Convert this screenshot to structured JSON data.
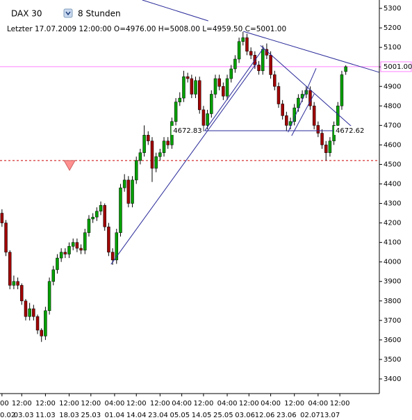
{
  "chart_data": {
    "type": "candlestick",
    "title": "DAX 30",
    "period": "8 Stunden",
    "subtitle": "Letzter 17.07.2009 12:00:00 O=4976.00 H=5008.00 L=4959.50 C=5001.00",
    "up_color": "#00a000",
    "down_color": "#a00000",
    "xlim": [
      -0.5,
      95.5
    ],
    "ylim": [
      3325,
      5343
    ],
    "yticks": [
      3400,
      3500,
      3600,
      3700,
      3800,
      3900,
      4000,
      4100,
      4200,
      4300,
      4400,
      4500,
      4600,
      4700,
      4800,
      4900,
      5000,
      5100,
      5200,
      5300
    ],
    "yticks_side": "right",
    "xticks": [
      {
        "value": 0,
        "label": "00"
      },
      {
        "value": 5,
        "label": "12:00"
      },
      {
        "value": 11,
        "label": "12:00"
      },
      {
        "value": 17,
        "label": "12:00"
      },
      {
        "value": 22.5,
        "label": "12:00"
      },
      {
        "value": 28.5,
        "label": "04:00"
      },
      {
        "value": 34,
        "label": "12:00"
      },
      {
        "value": 40,
        "label": "12:00"
      },
      {
        "value": 45.5,
        "label": "04:00"
      },
      {
        "value": 51,
        "label": "12:00"
      },
      {
        "value": 57,
        "label": "04:00"
      },
      {
        "value": 62.5,
        "label": "12:00"
      },
      {
        "value": 68,
        "label": "04:00"
      },
      {
        "value": 74,
        "label": "12:00"
      },
      {
        "value": 80,
        "label": "04:00"
      },
      {
        "value": 85.5,
        "label": "12:00"
      }
    ],
    "xtick_dates": [
      {
        "value": 0,
        "label": "0.02"
      },
      {
        "value": 5.5,
        "label": "03.03"
      },
      {
        "value": 11,
        "label": "11.03"
      },
      {
        "value": 17,
        "label": "18.03"
      },
      {
        "value": 22.5,
        "label": "25.03"
      },
      {
        "value": 28.5,
        "label": "01.04"
      },
      {
        "value": 34,
        "label": "14.04"
      },
      {
        "value": 39.5,
        "label": "23.04"
      },
      {
        "value": 45,
        "label": "05.05"
      },
      {
        "value": 50.5,
        "label": "14.05"
      },
      {
        "value": 56,
        "label": "25.05"
      },
      {
        "value": 61.5,
        "label": "03.06"
      },
      {
        "value": 66.5,
        "label": "12.06"
      },
      {
        "value": 72,
        "label": "23.06"
      },
      {
        "value": 78,
        "label": "02.07"
      },
      {
        "value": 83,
        "label": "13.07"
      }
    ],
    "candles": [
      [
        4250,
        4270,
        4180,
        4200
      ],
      [
        4200,
        4215,
        4030,
        4050
      ],
      [
        4050,
        4060,
        3860,
        3880
      ],
      [
        3880,
        3930,
        3860,
        3900
      ],
      [
        3900,
        3920,
        3860,
        3880
      ],
      [
        3880,
        3890,
        3780,
        3800
      ],
      [
        3800,
        3810,
        3700,
        3720
      ],
      [
        3720,
        3790,
        3700,
        3760
      ],
      [
        3760,
        3780,
        3700,
        3720
      ],
      [
        3720,
        3730,
        3630,
        3650
      ],
      [
        3650,
        3660,
        3590,
        3620
      ],
      [
        3620,
        3770,
        3600,
        3750
      ],
      [
        3750,
        3920,
        3730,
        3900
      ],
      [
        3900,
        3980,
        3880,
        3960
      ],
      [
        3960,
        4040,
        3940,
        4020
      ],
      [
        4020,
        4070,
        4000,
        4050
      ],
      [
        4050,
        4070,
        4020,
        4040
      ],
      [
        4040,
        4100,
        4020,
        4080
      ],
      [
        4080,
        4120,
        4060,
        4100
      ],
      [
        4100,
        4120,
        4050,
        4070
      ],
      [
        4070,
        4090,
        4040,
        4060
      ],
      [
        4060,
        4170,
        4040,
        4150
      ],
      [
        4150,
        4240,
        4130,
        4220
      ],
      [
        4220,
        4250,
        4200,
        4230
      ],
      [
        4230,
        4280,
        4210,
        4260
      ],
      [
        4260,
        4310,
        4240,
        4290
      ],
      [
        4290,
        4300,
        4160,
        4180
      ],
      [
        4180,
        4200,
        4030,
        4050
      ],
      [
        4050,
        4070,
        3985,
        4010
      ],
      [
        4010,
        4170,
        3990,
        4150
      ],
      [
        4150,
        4400,
        4130,
        4380
      ],
      [
        4380,
        4450,
        4360,
        4420
      ],
      [
        4420,
        4440,
        4280,
        4300
      ],
      [
        4300,
        4440,
        4280,
        4420
      ],
      [
        4420,
        4540,
        4400,
        4520
      ],
      [
        4520,
        4580,
        4500,
        4560
      ],
      [
        4560,
        4700,
        4540,
        4650
      ],
      [
        4650,
        4670,
        4600,
        4620
      ],
      [
        4620,
        4640,
        4410,
        4480
      ],
      [
        4480,
        4560,
        4460,
        4540
      ],
      [
        4540,
        4580,
        4520,
        4560
      ],
      [
        4560,
        4640,
        4540,
        4620
      ],
      [
        4620,
        4640,
        4580,
        4600
      ],
      [
        4600,
        4740,
        4580,
        4720
      ],
      [
        4720,
        4840,
        4700,
        4820
      ],
      [
        4820,
        4870,
        4800,
        4840
      ],
      [
        4840,
        4980,
        4820,
        4950
      ],
      [
        4950,
        4970,
        4920,
        4940
      ],
      [
        4940,
        4960,
        4840,
        4860
      ],
      [
        4860,
        4950,
        4840,
        4930
      ],
      [
        4930,
        4950,
        4760,
        4780
      ],
      [
        4780,
        4800,
        4670,
        4700
      ],
      [
        4700,
        4780,
        4680,
        4760
      ],
      [
        4760,
        4880,
        4740,
        4860
      ],
      [
        4860,
        4960,
        4840,
        4940
      ],
      [
        4940,
        4960,
        4880,
        4900
      ],
      [
        4900,
        4920,
        4830,
        4850
      ],
      [
        4850,
        4960,
        4830,
        4940
      ],
      [
        4940,
        5010,
        4920,
        4990
      ],
      [
        4990,
        5060,
        4970,
        5040
      ],
      [
        5040,
        5150,
        5020,
        5130
      ],
      [
        5130,
        5180,
        5110,
        5150
      ],
      [
        5150,
        5170,
        5060,
        5080
      ],
      [
        5080,
        5100,
        5040,
        5060
      ],
      [
        5060,
        5080,
        4990,
        5010
      ],
      [
        5010,
        5030,
        4960,
        4980
      ],
      [
        4980,
        5110,
        4960,
        5090
      ],
      [
        5090,
        5120,
        5040,
        5060
      ],
      [
        5060,
        5080,
        4940,
        4960
      ],
      [
        4960,
        4980,
        4880,
        4900
      ],
      [
        4900,
        4920,
        4790,
        4810
      ],
      [
        4810,
        4830,
        4730,
        4750
      ],
      [
        4750,
        4770,
        4670,
        4700
      ],
      [
        4700,
        4740,
        4680,
        4720
      ],
      [
        4720,
        4810,
        4700,
        4790
      ],
      [
        4790,
        4860,
        4770,
        4840
      ],
      [
        4840,
        4880,
        4820,
        4860
      ],
      [
        4860,
        4900,
        4840,
        4880
      ],
      [
        4880,
        4900,
        4780,
        4800
      ],
      [
        4800,
        4820,
        4680,
        4700
      ],
      [
        4700,
        4720,
        4640,
        4660
      ],
      [
        4660,
        4680,
        4580,
        4600
      ],
      [
        4600,
        4620,
        4520,
        4560
      ],
      [
        4560,
        4640,
        4540,
        4620
      ],
      [
        4620,
        4720,
        4600,
        4700
      ],
      [
        4700,
        4820,
        4680,
        4800
      ],
      [
        4800,
        4980,
        4780,
        4960
      ],
      [
        4976,
        5008,
        4959.5,
        5001
      ]
    ],
    "hlines": [
      {
        "value": 5001,
        "label": "5001.00",
        "color": "#ff80ff",
        "dashed": false
      },
      {
        "value": 4520,
        "color": "#cc0000",
        "dashed": true
      }
    ],
    "trendlines": [
      {
        "from": [
          35.5,
          5343
        ],
        "to": [
          52.2,
          5236
        ]
      },
      {
        "from": [
          61.1,
          5182
        ],
        "to": [
          95.5,
          4972
        ]
      },
      {
        "from": [
          27.6,
          3988
        ],
        "to": [
          64.5,
          5022
        ]
      },
      {
        "from": [
          51.3,
          4672
        ],
        "to": [
          66.3,
          5100
        ]
      },
      {
        "from": [
          65.4,
          5110
        ],
        "to": [
          89.1,
          4683
        ]
      },
      {
        "from": [
          72.4,
          4665
        ],
        "to": [
          79.5,
          4993
        ]
      },
      {
        "from": [
          73.3,
          4647
        ],
        "to": [
          79,
          4861
        ]
      }
    ],
    "level_line": {
      "from": [
        51.3,
        4672.83
      ],
      "to": [
        83.9,
        4672.62
      ]
    },
    "marker": {
      "x": 17.1,
      "y": 4495,
      "color": "#ff9090"
    }
  }
}
